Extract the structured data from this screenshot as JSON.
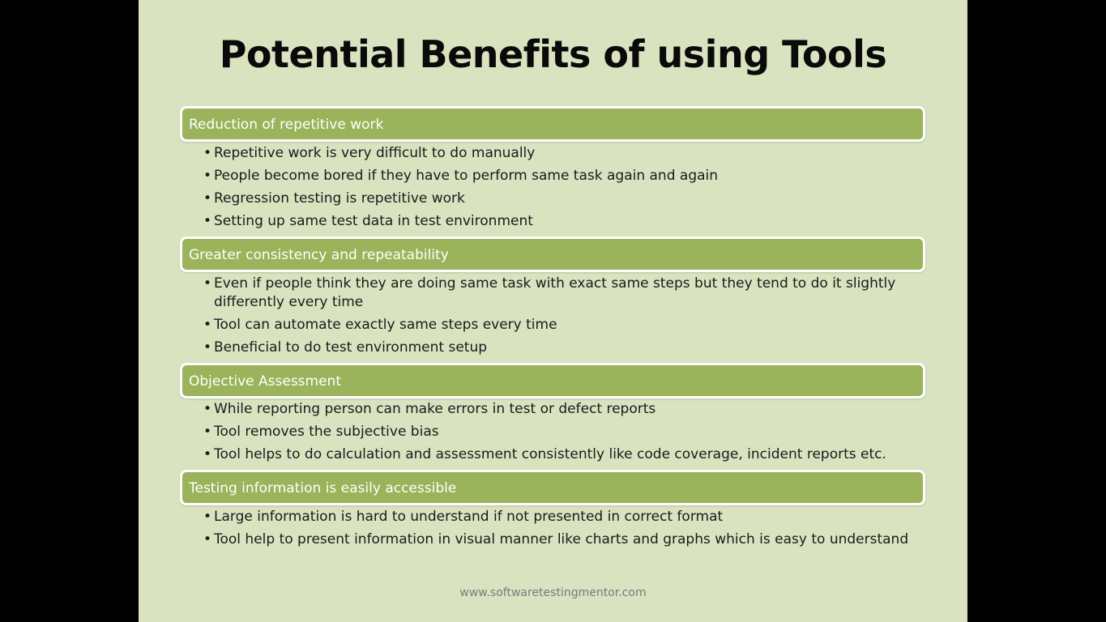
{
  "title": "Potential Benefits of using Tools",
  "footer": "www.softwaretestingmentor.com",
  "colors": {
    "slide_bg": "#d9e3c0",
    "header_bg": "#9bb35a",
    "header_text": "#ffffff"
  },
  "sections": [
    {
      "header": "Reduction of repetitive work",
      "bullets": [
        "Repetitive work is very difficult to do manually",
        "People become bored if they have to perform same task again and again",
        "Regression testing is repetitive work",
        "Setting up same test data in test environment"
      ]
    },
    {
      "header": "Greater consistency and repeatability",
      "bullets": [
        "Even if people think they are doing same task with exact same steps but they tend to do it slightly differently every time",
        "Tool can automate exactly same steps every time",
        "Beneficial to do test environment setup"
      ]
    },
    {
      "header": "Objective Assessment",
      "bullets": [
        "While reporting person can make errors in test or defect reports",
        "Tool removes the subjective bias",
        "Tool helps to do calculation and assessment consistently like code coverage, incident reports etc."
      ]
    },
    {
      "header": "Testing information is easily accessible",
      "bullets": [
        "Large information is hard to understand if not presented in correct format",
        "Tool help to present information in visual manner like charts and graphs which is easy to understand"
      ]
    }
  ]
}
